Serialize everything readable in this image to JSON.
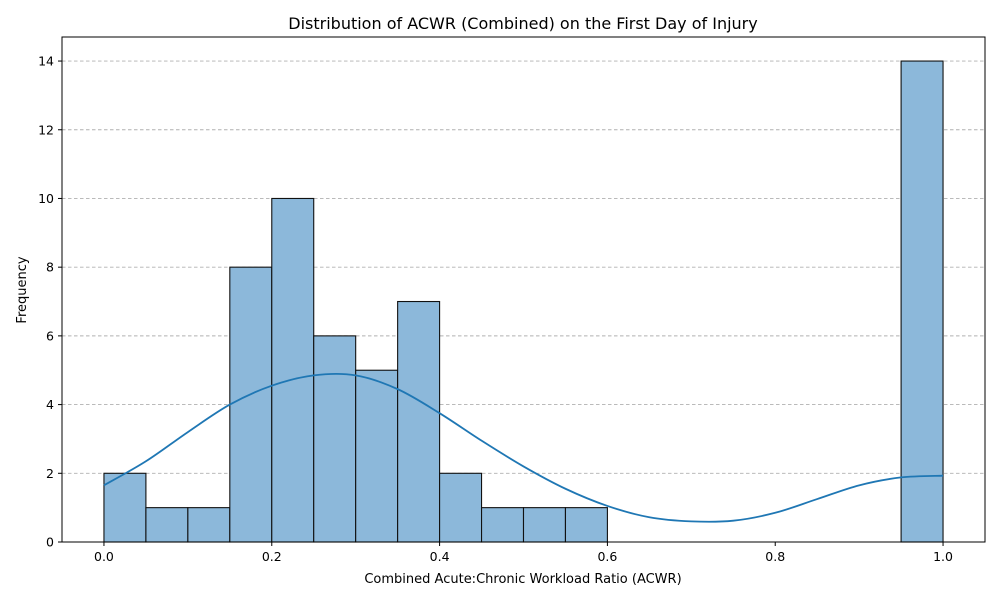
{
  "chart_data": {
    "type": "bar",
    "title": "Distribution of ACWR (Combined) on the First Day of Injury",
    "xlabel": "Combined Acute:Chronic Workload Ratio (ACWR)",
    "ylabel": "Frequency",
    "xlim": [
      -0.05,
      1.05
    ],
    "ylim": [
      0,
      14.7
    ],
    "grid": "y-dashed",
    "x_ticks": [
      0.0,
      0.2,
      0.4,
      0.6,
      0.8,
      1.0
    ],
    "x_tick_labels": [
      "0.0",
      "0.2",
      "0.4",
      "0.6",
      "0.8",
      "1.0"
    ],
    "y_ticks": [
      0,
      2,
      4,
      6,
      8,
      10,
      12,
      14
    ],
    "y_tick_labels": [
      "0",
      "2",
      "4",
      "6",
      "8",
      "10",
      "12",
      "14"
    ],
    "bin_width": 0.05,
    "bins": [
      {
        "start": 0.0,
        "count": 2
      },
      {
        "start": 0.05,
        "count": 1
      },
      {
        "start": 0.1,
        "count": 1
      },
      {
        "start": 0.15,
        "count": 8
      },
      {
        "start": 0.2,
        "count": 10
      },
      {
        "start": 0.25,
        "count": 6
      },
      {
        "start": 0.3,
        "count": 5
      },
      {
        "start": 0.35,
        "count": 7
      },
      {
        "start": 0.4,
        "count": 2
      },
      {
        "start": 0.45,
        "count": 1
      },
      {
        "start": 0.5,
        "count": 1
      },
      {
        "start": 0.55,
        "count": 1
      },
      {
        "start": 0.6,
        "count": 0
      },
      {
        "start": 0.65,
        "count": 0
      },
      {
        "start": 0.7,
        "count": 0
      },
      {
        "start": 0.75,
        "count": 0
      },
      {
        "start": 0.8,
        "count": 0
      },
      {
        "start": 0.85,
        "count": 0
      },
      {
        "start": 0.9,
        "count": 0
      },
      {
        "start": 0.95,
        "count": 14
      }
    ],
    "kde_curve": {
      "x": [
        0.0,
        0.05,
        0.1,
        0.15,
        0.2,
        0.25,
        0.3,
        0.35,
        0.4,
        0.45,
        0.5,
        0.55,
        0.6,
        0.65,
        0.7,
        0.75,
        0.8,
        0.85,
        0.9,
        0.95,
        1.0
      ],
      "y": [
        1.65,
        2.35,
        3.2,
        4.0,
        4.55,
        4.85,
        4.85,
        4.45,
        3.75,
        2.95,
        2.2,
        1.55,
        1.05,
        0.72,
        0.6,
        0.62,
        0.85,
        1.25,
        1.65,
        1.88,
        1.93
      ]
    },
    "colors": {
      "bar_fill": "#8cb8da",
      "bar_edge": "#111111",
      "kde_line": "#1f77b4",
      "grid": "#b0b0b0"
    }
  }
}
